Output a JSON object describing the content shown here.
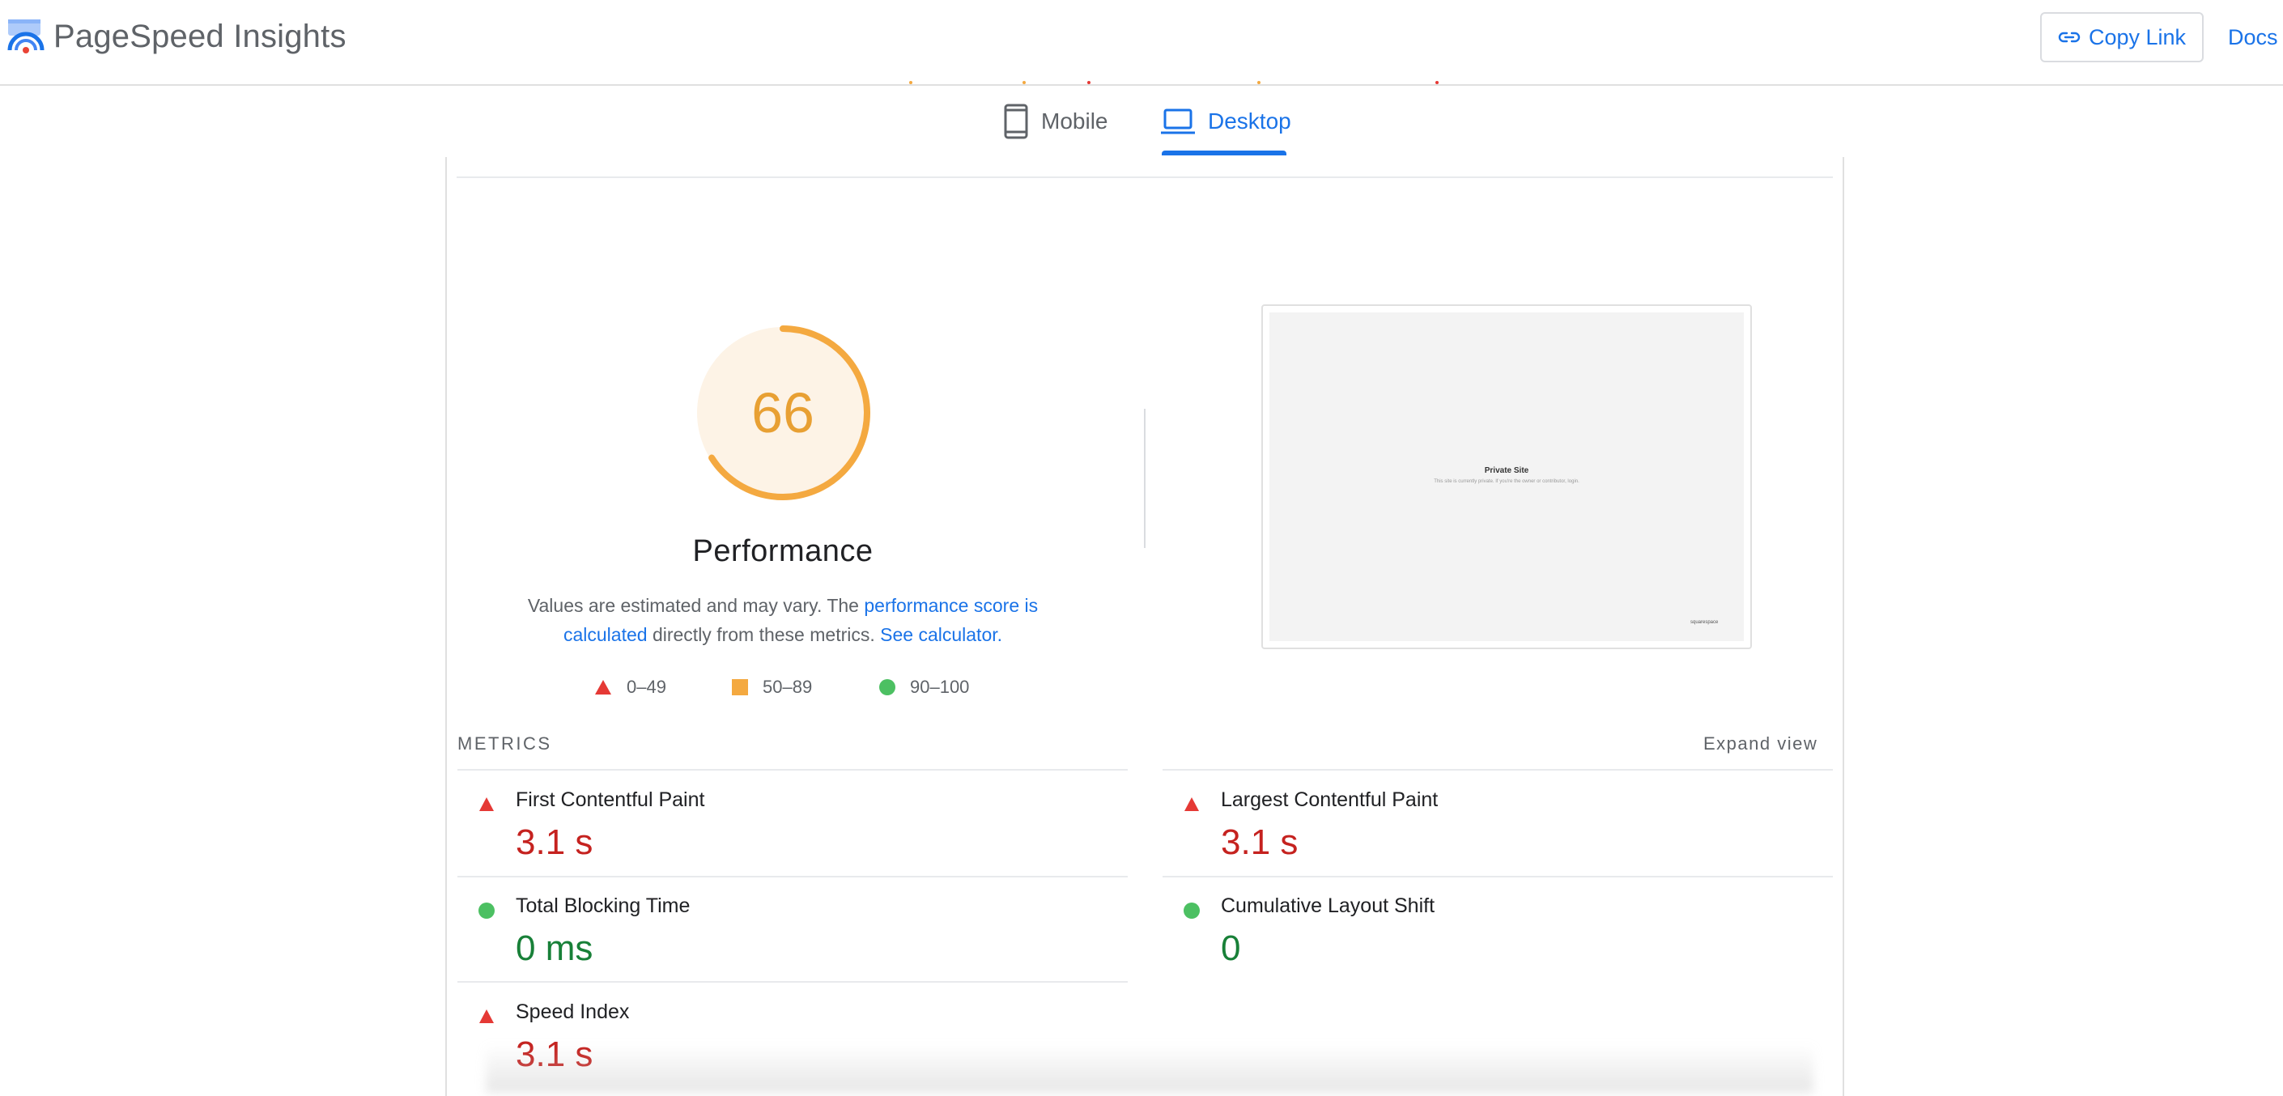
{
  "header": {
    "app_title": "PageSpeed Insights",
    "copy_link_label": "Copy Link",
    "copy_link_icon": "link-icon",
    "docs_label": "Docs"
  },
  "tabs": [
    {
      "label": "Mobile",
      "icon": "smartphone-icon",
      "selected": false
    },
    {
      "label": "Desktop",
      "icon": "laptop-icon",
      "selected": true
    }
  ],
  "performance": {
    "score": "66",
    "score_fraction": 0.66,
    "score_color": "#e8a033",
    "title": "Performance",
    "desc_text_1": "Values are estimated and may vary. The ",
    "desc_link_1": "performance score is calculated",
    "desc_text_2": " directly from these metrics. ",
    "desc_link_2": "See calculator."
  },
  "legend": [
    {
      "range": "0–49",
      "shape": "triangle",
      "color": "#e53935"
    },
    {
      "range": "50–89",
      "shape": "square",
      "color": "#f4a940"
    },
    {
      "range": "90–100",
      "shape": "circle",
      "color": "#4cc062"
    }
  ],
  "screenshot": {
    "title": "Private Site",
    "subtitle": "This site is currently private. If you're the owner or contributor, login.",
    "brand": "squarespace"
  },
  "metrics": {
    "heading": "METRICS",
    "expand_label": "Expand view",
    "items": [
      {
        "name": "First Contentful Paint",
        "value": "3.1 s",
        "status": "poor"
      },
      {
        "name": "Largest Contentful Paint",
        "value": "3.1 s",
        "status": "poor"
      },
      {
        "name": "Total Blocking Time",
        "value": "0 ms",
        "status": "good"
      },
      {
        "name": "Cumulative Layout Shift",
        "value": "0",
        "status": "good"
      },
      {
        "name": "Speed Index",
        "value": "3.1 s",
        "status": "poor"
      }
    ]
  },
  "colors": {
    "accent": "#1a73e8",
    "poor": "#c5221f",
    "good": "#188038",
    "average": "#e8a033"
  }
}
